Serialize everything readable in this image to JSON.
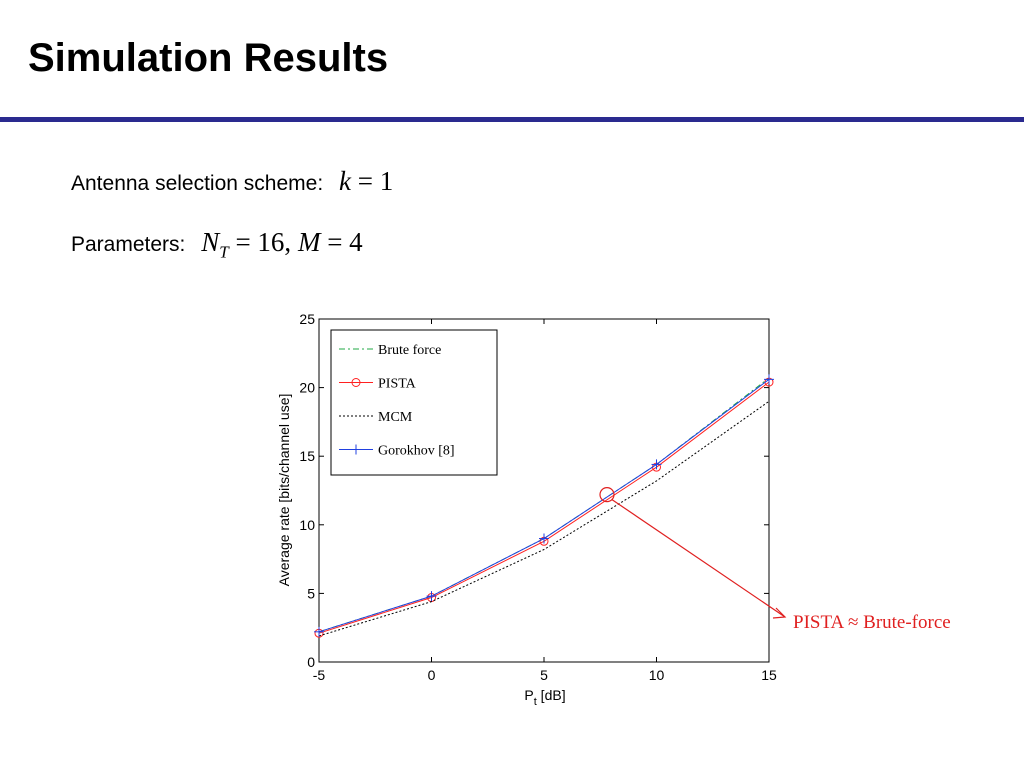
{
  "slide": {
    "title": "Simulation Results",
    "line1_label": "Antenna selection scheme:",
    "line1_math": {
      "var": "k",
      "rest": " = 1"
    },
    "line2_label": "Parameters:",
    "line2_math": {
      "n": "N",
      "sub": "T",
      "mid": " = 16, ",
      "m": "M",
      "rest": " = 4"
    }
  },
  "chart_data": {
    "type": "line",
    "xlabel_main": "P",
    "xlabel_sub": "t",
    "xlabel_unit": " [dB]",
    "ylabel": "Average rate [bits/channel use]",
    "xlim": [
      -5,
      15
    ],
    "ylim": [
      0,
      25
    ],
    "x_ticks": [
      "-5",
      "0",
      "5",
      "10",
      "15"
    ],
    "y_ticks": [
      "0",
      "5",
      "10",
      "15",
      "20",
      "25"
    ],
    "grid": false,
    "legend_position": "top-left",
    "x": [
      -5,
      0,
      5,
      10,
      15
    ],
    "series": [
      {
        "name": "Brute force",
        "values": [
          2.2,
          4.8,
          9.0,
          14.4,
          20.7
        ],
        "color": "#22aa44",
        "dash": "6,3,2,3",
        "marker": "none"
      },
      {
        "name": "PISTA",
        "values": [
          2.1,
          4.7,
          8.8,
          14.2,
          20.4
        ],
        "color": "#ff2020",
        "dash": "",
        "marker": "circle"
      },
      {
        "name": "MCM",
        "values": [
          1.9,
          4.4,
          8.2,
          13.2,
          19.0
        ],
        "color": "#000000",
        "dash": "2,2",
        "marker": "none"
      },
      {
        "name": "Gorokhov [8]",
        "values": [
          2.2,
          4.8,
          9.0,
          14.4,
          20.6
        ],
        "color": "#2040e0",
        "dash": "",
        "marker": "plus"
      }
    ],
    "annotation": {
      "text": "PISTA ≈ Brute-force",
      "x": 7.8,
      "y": 12.2,
      "color": "#e02020"
    }
  }
}
